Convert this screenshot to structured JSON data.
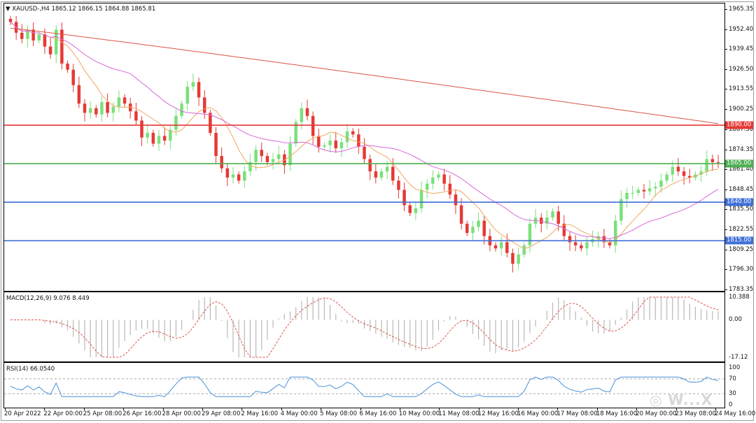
{
  "header": {
    "symbol_label": "XAUUSD-,H4",
    "ohlc": "1865.12 1866.15 1864.88 1865.81"
  },
  "price_axis": {
    "labels": [
      "1965.35",
      "1952.40",
      "1939.45",
      "1926.50",
      "1913.55",
      "1900.25",
      "1887.30",
      "1874.35",
      "1861.40",
      "1848.45",
      "1835.50",
      "1822.55",
      "1809.25",
      "1796.30",
      "1783.35"
    ],
    "values": [
      1965.35,
      1952.4,
      1939.45,
      1926.5,
      1913.55,
      1900.25,
      1887.3,
      1874.35,
      1861.4,
      1848.45,
      1835.5,
      1822.55,
      1809.25,
      1796.3,
      1783.35
    ]
  },
  "levels": [
    {
      "label": "1890.00",
      "value": 1890.0,
      "color": "#e53935"
    },
    {
      "label": "1865.00",
      "value": 1865.0,
      "color": "#4caf50"
    },
    {
      "label": "1840.00",
      "value": 1840.0,
      "color": "#3f6fd8"
    },
    {
      "label": "1815.00",
      "value": 1815.0,
      "color": "#3f6fd8"
    }
  ],
  "macd": {
    "title": "MACD(12,26,9) 9.076 8.449",
    "axis_labels": [
      "10.388",
      "0.00",
      "-17.12"
    ],
    "axis_values": [
      10.388,
      0.0,
      -17.12
    ]
  },
  "rsi": {
    "title": "RSI(14) 66.0540",
    "axis_labels": [
      "100",
      "70",
      "30",
      "0"
    ],
    "axis_values": [
      100,
      70,
      30,
      0
    ]
  },
  "time_axis": {
    "labels": [
      "20 Apr 2022",
      "22 Apr 00:00",
      "25 Apr 08:00",
      "26 Apr 16:00",
      "28 Apr 00:00",
      "29 Apr 08:00",
      "2 May 16:00",
      "4 May 00:00",
      "5 May 08:00",
      "6 May 16:00",
      "10 May 00:00",
      "11 May 08:00",
      "12 May 16:00",
      "16 May 00:00",
      "17 May 08:00",
      "18 May 16:00",
      "20 May 00:00",
      "23 May 08:00",
      "24 May 16:00"
    ]
  },
  "colors": {
    "bull": "#7be07b",
    "bear": "#e53935",
    "ma_fast": "#f0a860",
    "ma_mid": "#d968d9",
    "ma_slow": "#d9564a",
    "macd_signal": "#d9564a",
    "rsi_line": "#4a90d9"
  },
  "chart_data": {
    "type": "candlestick",
    "symbol": "XAUUSD",
    "timeframe": "H4",
    "ylim": [
      1783.35,
      1965.35
    ],
    "close_path": [
      1957,
      1950,
      1946,
      1952,
      1945,
      1949,
      1941,
      1936,
      1952,
      1930,
      1926,
      1916,
      1904,
      1898,
      1901,
      1897,
      1905,
      1898,
      1902,
      1908,
      1904,
      1899,
      1893,
      1882,
      1885,
      1878,
      1883,
      1880,
      1887,
      1896,
      1904,
      1915,
      1918,
      1908,
      1898,
      1885,
      1870,
      1862,
      1856,
      1858,
      1854,
      1860,
      1866,
      1874,
      1870,
      1866,
      1868,
      1871,
      1864,
      1878,
      1892,
      1901,
      1896,
      1883,
      1876,
      1877,
      1880,
      1875,
      1879,
      1886,
      1884,
      1876,
      1868,
      1860,
      1856,
      1860,
      1863,
      1854,
      1848,
      1838,
      1833,
      1836,
      1848,
      1852,
      1856,
      1858,
      1852,
      1845,
      1838,
      1826,
      1820,
      1824,
      1828,
      1818,
      1812,
      1810,
      1814,
      1807,
      1800,
      1806,
      1812,
      1826,
      1830,
      1826,
      1830,
      1834,
      1826,
      1818,
      1814,
      1812,
      1810,
      1814,
      1816,
      1818,
      1814,
      1812,
      1828,
      1842,
      1846,
      1846,
      1848,
      1847,
      1849,
      1850,
      1854,
      1858,
      1863,
      1860,
      1857,
      1856,
      1858,
      1860,
      1868,
      1866,
      1865.8
    ]
  }
}
